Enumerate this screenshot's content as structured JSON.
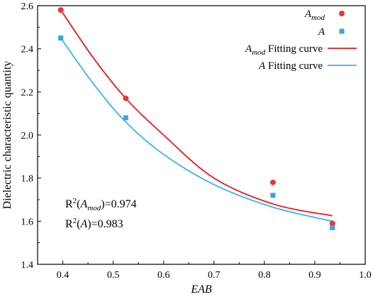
{
  "chart_data": {
    "type": "scatter",
    "xlabel": "EAB",
    "ylabel": "Dielectric characteristic quantity",
    "xlim": [
      0.35,
      1.0
    ],
    "ylim": [
      1.4,
      2.6
    ],
    "xticks": [
      "0.4",
      "0.5",
      "0.6",
      "0.7",
      "0.8",
      "0.9",
      "1.0"
    ],
    "yticks": [
      "1.4",
      "1.6",
      "1.8",
      "2.0",
      "2.2",
      "2.4",
      "2.6"
    ],
    "grid": false,
    "legend_position": "top-right",
    "series": [
      {
        "name_main": "A",
        "name_sub": "mod",
        "marker": "circle",
        "color": "#e8373c",
        "x": [
          0.396,
          0.525,
          0.817,
          0.935
        ],
        "y": [
          2.58,
          2.17,
          1.78,
          1.59
        ]
      },
      {
        "name_main": "A",
        "name_sub": "",
        "marker": "square",
        "color": "#3ba3e0",
        "x": [
          0.396,
          0.525,
          0.817,
          0.935
        ],
        "y": [
          2.45,
          2.08,
          1.72,
          1.57
        ]
      }
    ],
    "fits": [
      {
        "name_main": "A",
        "name_sub": "mod",
        "name_suffix": "Fitting curve",
        "color": "#e31a1c",
        "x": [
          0.396,
          0.46,
          0.525,
          0.6,
          0.7,
          0.817,
          0.935
        ],
        "y": [
          2.58,
          2.36,
          2.17,
          2.0,
          1.8,
          1.68,
          1.625
        ]
      },
      {
        "name_main": "A",
        "name_sub": "",
        "name_suffix": "Fitting curve",
        "color": "#3ab3e6",
        "x": [
          0.396,
          0.46,
          0.525,
          0.6,
          0.7,
          0.817,
          0.935
        ],
        "y": [
          2.45,
          2.24,
          2.06,
          1.91,
          1.77,
          1.665,
          1.6
        ]
      }
    ],
    "annotations": [
      {
        "prefix": "R",
        "sup": "2",
        "open": "(",
        "main": "A",
        "sub": "mod",
        "close": ")=0.974"
      },
      {
        "prefix": "R",
        "sup": "2",
        "open": "(",
        "main": "A",
        "sub": "",
        "close": ")=0.983"
      }
    ]
  }
}
